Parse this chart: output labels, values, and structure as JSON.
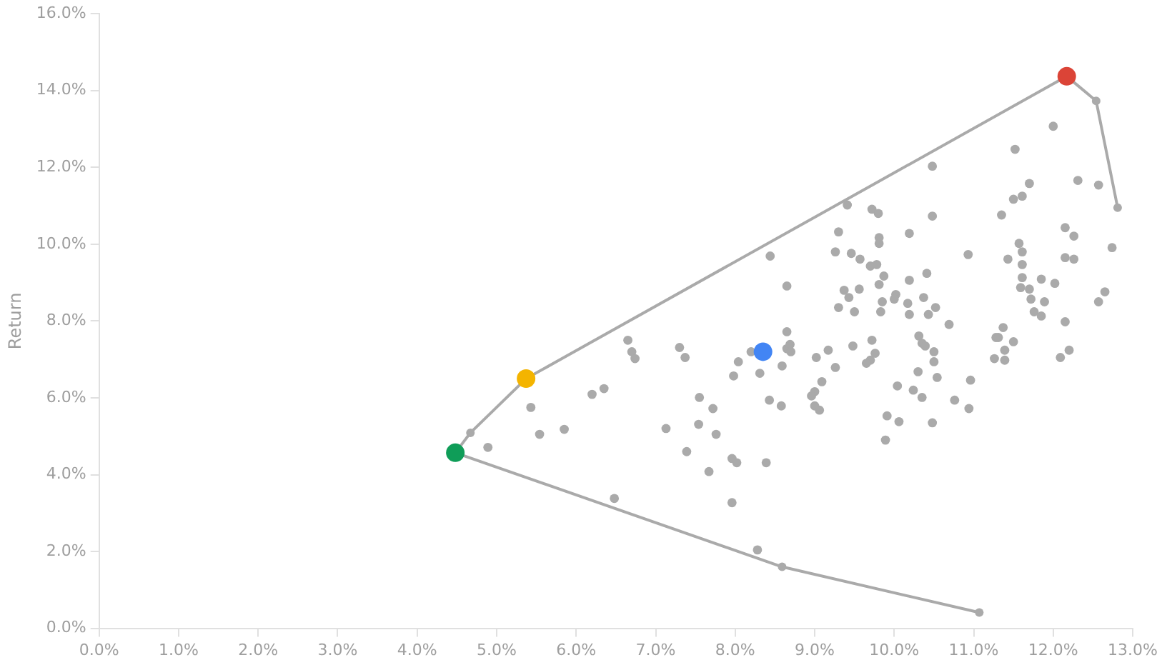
{
  "chart_data": {
    "type": "scatter",
    "ylabel": "Return",
    "legend": false,
    "grid": false,
    "marker": "circle",
    "xlim": [
      0,
      13
    ],
    "ylim": [
      0,
      16
    ],
    "xticks": [
      {
        "value": 0,
        "label": "0.0%"
      },
      {
        "value": 1,
        "label": "1.0%"
      },
      {
        "value": 2,
        "label": "2.0%"
      },
      {
        "value": 3,
        "label": "3.0%"
      },
      {
        "value": 4,
        "label": "4.0%"
      },
      {
        "value": 5,
        "label": "5.0%"
      },
      {
        "value": 6,
        "label": "6.0%"
      },
      {
        "value": 7,
        "label": "7.0%"
      },
      {
        "value": 8,
        "label": "8.0%"
      },
      {
        "value": 9,
        "label": "9.0%"
      },
      {
        "value": 10,
        "label": "10.0%"
      },
      {
        "value": 11,
        "label": "11.0%"
      },
      {
        "value": 12,
        "label": "12.0%"
      },
      {
        "value": 13,
        "label": "13.0%"
      }
    ],
    "yticks": [
      {
        "value": 0,
        "label": "0.0%"
      },
      {
        "value": 2,
        "label": "2.0%"
      },
      {
        "value": 4,
        "label": "4.0%"
      },
      {
        "value": 6,
        "label": "6.0%"
      },
      {
        "value": 8,
        "label": "8.0%"
      },
      {
        "value": 10,
        "label": "10.0%"
      },
      {
        "value": 12,
        "label": "12.0%"
      },
      {
        "value": 14,
        "label": "14.0%"
      },
      {
        "value": 16,
        "label": "16.0%"
      }
    ],
    "series": [
      {
        "type": "scatter",
        "color": "#0f9d58",
        "x": [
          4.48
        ],
        "values": [
          4.57
        ]
      },
      {
        "type": "scatter",
        "color": "#f4b400",
        "x": [
          5.37
        ],
        "values": [
          6.5
        ]
      },
      {
        "type": "scatter",
        "color": "#db4437",
        "x": [
          12.17
        ],
        "values": [
          14.37
        ]
      },
      {
        "type": "scatter",
        "color": "#4285f4",
        "x": [
          8.35
        ],
        "values": [
          7.2
        ]
      },
      {
        "type": "scatter",
        "color": "#aaaaaa",
        "x": [
          4.89,
          5.43,
          5.54,
          5.85,
          6.48,
          6.2,
          6.35,
          6.65,
          6.7,
          6.74,
          7.13,
          7.3,
          7.37,
          7.39,
          7.55,
          7.54,
          7.67,
          7.72,
          7.76,
          7.96,
          8.02,
          7.96,
          7.98,
          8.04,
          8.2,
          8.28,
          8.31,
          8.39,
          8.43,
          8.44,
          8.58,
          8.59,
          8.65,
          8.65,
          8.65,
          8.69,
          8.7,
          10.48,
          9.41,
          9.72,
          9.8,
          10.48,
          9.3,
          10.19,
          9.81,
          9.81,
          9.26,
          9.46,
          9.57,
          9.7,
          9.78,
          10.93,
          9.87,
          10.41,
          10.19,
          9.81,
          9.37,
          9.56,
          9.43,
          10.02,
          10,
          10.37,
          9.85,
          10.17,
          9.3,
          9.5,
          9.83,
          10.19,
          10.43,
          10.52,
          10.69,
          9.02,
          9.17,
          9.48,
          9.72,
          9.76,
          9.7,
          9.65,
          9.26,
          10.31,
          10.35,
          10.39,
          10.5,
          10.5,
          11.28,
          11.26,
          10.3,
          10.54,
          10.96,
          9.09,
          9,
          8.96,
          10.04,
          10.24,
          10.35,
          10.76,
          10.94,
          9,
          9.06,
          9.91,
          10.06,
          10.48,
          9.89,
          12,
          11.52,
          11.7,
          11.61,
          11.5,
          12.31,
          12.57,
          11.35,
          12.15,
          12.26,
          11.57,
          11.61,
          11.43,
          12.15,
          12.26,
          12.74,
          11.61,
          11.61,
          11.85,
          12.02,
          11.59,
          11.7,
          11.72,
          11.89,
          12.65,
          12.57,
          11.76,
          11.85,
          12.15,
          11.37,
          11.31,
          11.5,
          11.39,
          11.39,
          12.09,
          12.2
        ],
        "values": [
          4.71,
          5.75,
          5.05,
          5.18,
          3.38,
          6.09,
          6.24,
          7.5,
          7.2,
          7.02,
          5.2,
          7.31,
          7.05,
          4.6,
          6.01,
          5.31,
          4.08,
          5.72,
          5.05,
          4.42,
          4.31,
          3.27,
          6.57,
          6.94,
          7.2,
          2.04,
          6.64,
          4.31,
          5.94,
          9.69,
          5.79,
          6.83,
          8.91,
          7.72,
          7.28,
          7.39,
          7.2,
          12.03,
          11.02,
          10.91,
          10.8,
          10.73,
          10.32,
          10.28,
          10.17,
          10.02,
          9.8,
          9.76,
          9.61,
          9.43,
          9.47,
          9.73,
          9.17,
          9.24,
          9.06,
          8.95,
          8.8,
          8.83,
          8.61,
          8.69,
          8.57,
          8.61,
          8.5,
          8.46,
          8.35,
          8.24,
          8.24,
          8.17,
          8.17,
          8.35,
          7.91,
          7.05,
          7.24,
          7.35,
          7.5,
          7.16,
          6.98,
          6.9,
          6.79,
          7.61,
          7.42,
          7.35,
          7.2,
          6.94,
          7.57,
          7.02,
          6.68,
          6.53,
          6.46,
          6.42,
          6.16,
          6.05,
          6.31,
          6.2,
          6.01,
          5.94,
          5.72,
          5.79,
          5.68,
          5.53,
          5.38,
          5.35,
          4.9,
          13.07,
          12.47,
          11.58,
          11.25,
          11.17,
          11.66,
          11.54,
          10.76,
          10.43,
          10.21,
          10.02,
          9.8,
          9.61,
          9.65,
          9.61,
          9.91,
          9.47,
          9.13,
          9.09,
          8.98,
          8.87,
          8.83,
          8.57,
          8.5,
          8.76,
          8.5,
          8.24,
          8.13,
          7.98,
          7.83,
          7.57,
          7.46,
          7.24,
          6.98,
          7.05,
          7.24
        ]
      },
      {
        "type": "line",
        "color": "#aaaaaa",
        "x": [
          11.07,
          8.59,
          4.48,
          4.67,
          5.37,
          12.17,
          12.54,
          12.81
        ],
        "values": [
          0.41,
          1.6,
          4.57,
          5.09,
          6.5,
          14.37,
          13.73,
          10.95
        ]
      }
    ]
  }
}
